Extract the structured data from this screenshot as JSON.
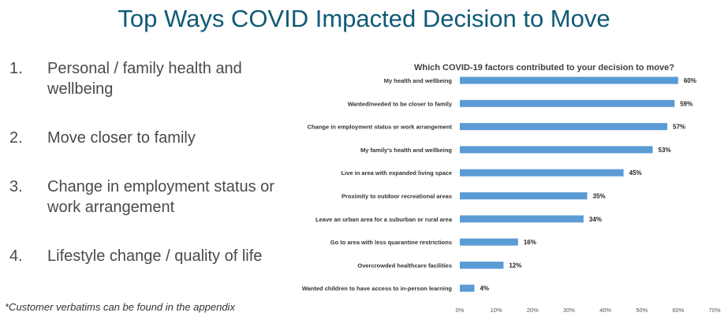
{
  "page": {
    "title": "Top Ways COVID Impacted Decision to Move",
    "footnote": "*Customer verbatims can be found in the appendix"
  },
  "list": [
    {
      "num": "1.",
      "text": "Personal / family health and wellbeing"
    },
    {
      "num": "2.",
      "text": "Move closer to family"
    },
    {
      "num": "3.",
      "text": "Change in employment status or work arrangement"
    },
    {
      "num": "4.",
      "text": "Lifestyle change / quality of life"
    }
  ],
  "colors": {
    "title": "#0f5a77",
    "bar": "#5b9bd5"
  },
  "chart_data": {
    "type": "bar",
    "orientation": "horizontal",
    "title": "Which COVID-19 factors contributed to your decision to move?",
    "categories": [
      "My health and wellbeing",
      "Wanted/needed to be closer to family",
      "Change in employment status or work arrangement",
      "My family's health and wellbeing",
      "Live in area with expanded living space",
      "Proximity to outdoor recreational areas",
      "Leave an urban area for a suburban or rural area",
      "Go to area with less quarantine restrictions",
      "Overcrowded healthcare facilities",
      "Wanted children to have access to in-person learning"
    ],
    "values": [
      60,
      59,
      57,
      53,
      45,
      35,
      34,
      16,
      12,
      4
    ],
    "data_labels": [
      "60%",
      "59%",
      "57%",
      "53%",
      "45%",
      "35%",
      "34%",
      "16%",
      "12%",
      "4%"
    ],
    "ticks": [
      "0%",
      "10%",
      "20%",
      "30%",
      "40%",
      "50%",
      "60%",
      "70%"
    ],
    "xlim": [
      0,
      70
    ],
    "grid": false,
    "legend": "none"
  }
}
